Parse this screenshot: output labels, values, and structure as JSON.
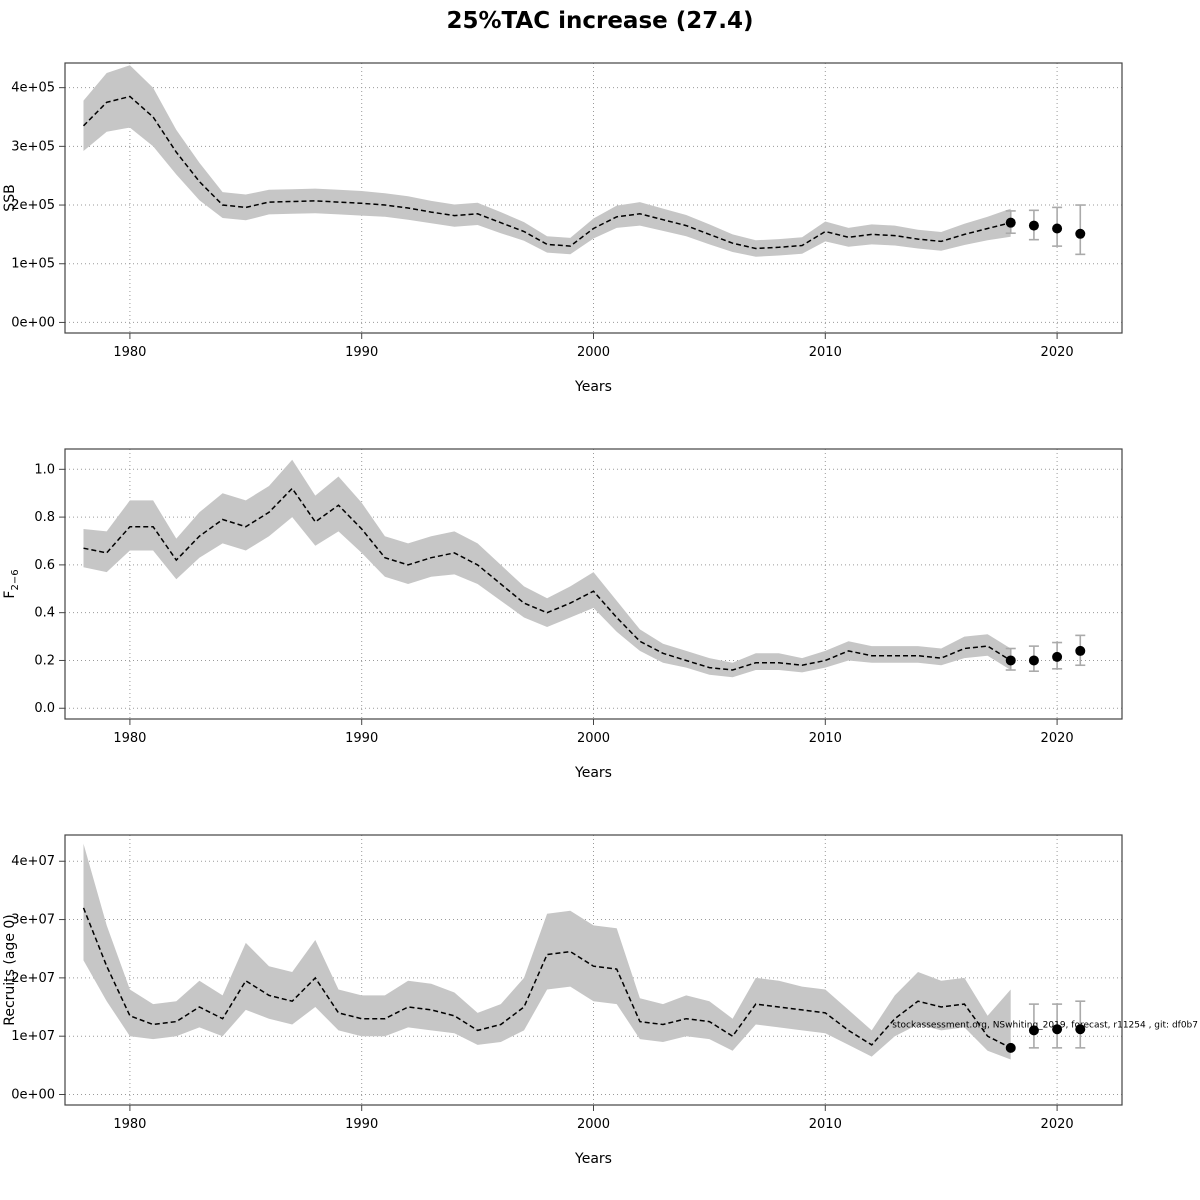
{
  "title": "25%TAC increase (27.4)",
  "chart_data": [
    {
      "type": "line",
      "name": "ssb",
      "ylabel": "SSB",
      "xlabel": "Years",
      "legend": "none",
      "grid": "dotted",
      "xlim": [
        1977.2,
        2022.8
      ],
      "ylim": [
        -18000,
        442000
      ],
      "xticks": [
        1980,
        1990,
        2000,
        2010,
        2020
      ],
      "yticks": [
        {
          "v": 0,
          "label": "0e+00"
        },
        {
          "v": 100000,
          "label": "1e+05"
        },
        {
          "v": 200000,
          "label": "2e+05"
        },
        {
          "v": 300000,
          "label": "3e+05"
        },
        {
          "v": 400000,
          "label": "4e+05"
        }
      ],
      "x": [
        1978,
        1979,
        1980,
        1981,
        1982,
        1983,
        1984,
        1985,
        1986,
        1987,
        1988,
        1989,
        1990,
        1991,
        1992,
        1993,
        1994,
        1995,
        1996,
        1997,
        1998,
        1999,
        2000,
        2001,
        2002,
        2003,
        2004,
        2005,
        2006,
        2007,
        2008,
        2009,
        2010,
        2011,
        2012,
        2013,
        2014,
        2015,
        2016,
        2017,
        2018
      ],
      "mean": [
        335000,
        375000,
        385000,
        350000,
        290000,
        240000,
        200000,
        196000,
        205000,
        206000,
        207000,
        205000,
        203000,
        200000,
        195000,
        188000,
        182000,
        185000,
        170000,
        155000,
        133000,
        130000,
        160000,
        180000,
        185000,
        175000,
        165000,
        150000,
        135000,
        126000,
        128000,
        131000,
        155000,
        145000,
        150000,
        148000,
        142000,
        138000,
        150000,
        160000,
        170000
      ],
      "lo": [
        292000,
        325000,
        332000,
        300000,
        252000,
        208000,
        178000,
        174000,
        184000,
        185000,
        186000,
        184000,
        182000,
        180000,
        175000,
        169000,
        163000,
        166000,
        152000,
        139000,
        119000,
        116000,
        143000,
        161000,
        165000,
        156000,
        147000,
        133000,
        120000,
        112000,
        114000,
        117000,
        138000,
        129000,
        133000,
        131000,
        126000,
        122000,
        132000,
        140000,
        146000
      ],
      "hi": [
        378000,
        425000,
        438000,
        400000,
        328000,
        272000,
        222000,
        218000,
        226000,
        227000,
        228000,
        226000,
        224000,
        220000,
        215000,
        207000,
        201000,
        204000,
        188000,
        171000,
        147000,
        144000,
        177000,
        199000,
        205000,
        194000,
        183000,
        167000,
        150000,
        140000,
        142000,
        145000,
        172000,
        161000,
        167000,
        165000,
        158000,
        154000,
        168000,
        180000,
        194000
      ],
      "forecast": [
        {
          "x": 2018,
          "y": 170000,
          "lo": 152000,
          "hi": 190000
        },
        {
          "x": 2019,
          "y": 165000,
          "lo": 141000,
          "hi": 191000
        },
        {
          "x": 2020,
          "y": 160000,
          "lo": 130000,
          "hi": 196000
        },
        {
          "x": 2021,
          "y": 151000,
          "lo": 116000,
          "hi": 200000
        }
      ]
    },
    {
      "type": "line",
      "name": "fishing-mortality",
      "ylabel": "F",
      "ylabel_sub": "2−6",
      "xlabel": "Years",
      "legend": "none",
      "grid": "dotted",
      "xlim": [
        1977.2,
        2022.8
      ],
      "ylim": [
        -0.045,
        1.085
      ],
      "xticks": [
        1980,
        1990,
        2000,
        2010,
        2020
      ],
      "yticks": [
        {
          "v": 0.0,
          "label": "0.0"
        },
        {
          "v": 0.2,
          "label": "0.2"
        },
        {
          "v": 0.4,
          "label": "0.4"
        },
        {
          "v": 0.6,
          "label": "0.6"
        },
        {
          "v": 0.8,
          "label": "0.8"
        },
        {
          "v": 1.0,
          "label": "1.0"
        }
      ],
      "x": [
        1978,
        1979,
        1980,
        1981,
        1982,
        1983,
        1984,
        1985,
        1986,
        1987,
        1988,
        1989,
        1990,
        1991,
        1992,
        1993,
        1994,
        1995,
        1996,
        1997,
        1998,
        1999,
        2000,
        2001,
        2002,
        2003,
        2004,
        2005,
        2006,
        2007,
        2008,
        2009,
        2010,
        2011,
        2012,
        2013,
        2014,
        2015,
        2016,
        2017,
        2018
      ],
      "mean": [
        0.67,
        0.65,
        0.76,
        0.76,
        0.62,
        0.72,
        0.79,
        0.76,
        0.82,
        0.92,
        0.78,
        0.85,
        0.75,
        0.63,
        0.6,
        0.63,
        0.65,
        0.6,
        0.52,
        0.44,
        0.4,
        0.44,
        0.49,
        0.38,
        0.28,
        0.23,
        0.2,
        0.17,
        0.16,
        0.19,
        0.19,
        0.18,
        0.2,
        0.24,
        0.22,
        0.22,
        0.22,
        0.21,
        0.25,
        0.26,
        0.2
      ],
      "lo": [
        0.59,
        0.57,
        0.66,
        0.66,
        0.54,
        0.63,
        0.69,
        0.66,
        0.72,
        0.8,
        0.68,
        0.74,
        0.65,
        0.55,
        0.52,
        0.55,
        0.56,
        0.52,
        0.45,
        0.38,
        0.34,
        0.38,
        0.42,
        0.32,
        0.24,
        0.19,
        0.17,
        0.14,
        0.13,
        0.16,
        0.16,
        0.15,
        0.17,
        0.2,
        0.19,
        0.19,
        0.19,
        0.18,
        0.21,
        0.22,
        0.16
      ],
      "hi": [
        0.75,
        0.74,
        0.87,
        0.87,
        0.71,
        0.82,
        0.9,
        0.87,
        0.93,
        1.04,
        0.89,
        0.97,
        0.86,
        0.72,
        0.69,
        0.72,
        0.74,
        0.69,
        0.6,
        0.51,
        0.46,
        0.51,
        0.57,
        0.45,
        0.33,
        0.27,
        0.24,
        0.21,
        0.19,
        0.23,
        0.23,
        0.21,
        0.24,
        0.28,
        0.26,
        0.26,
        0.26,
        0.25,
        0.3,
        0.31,
        0.25
      ],
      "forecast": [
        {
          "x": 2018,
          "y": 0.2,
          "lo": 0.16,
          "hi": 0.25
        },
        {
          "x": 2019,
          "y": 0.2,
          "lo": 0.155,
          "hi": 0.26
        },
        {
          "x": 2020,
          "y": 0.215,
          "lo": 0.165,
          "hi": 0.275
        },
        {
          "x": 2021,
          "y": 0.24,
          "lo": 0.18,
          "hi": 0.305
        }
      ]
    },
    {
      "type": "line",
      "name": "recruits",
      "ylabel": "Recruits (age 0)",
      "xlabel": "Years",
      "legend": "none",
      "grid": "dotted",
      "xlim": [
        1977.2,
        2022.8
      ],
      "ylim": [
        -1800000,
        44500000
      ],
      "xticks": [
        1980,
        1990,
        2000,
        2010,
        2020
      ],
      "yticks": [
        {
          "v": 0,
          "label": "0e+00"
        },
        {
          "v": 10000000,
          "label": "1e+07"
        },
        {
          "v": 20000000,
          "label": "2e+07"
        },
        {
          "v": 30000000,
          "label": "3e+07"
        },
        {
          "v": 40000000,
          "label": "4e+07"
        }
      ],
      "x": [
        1978,
        1979,
        1980,
        1981,
        1982,
        1983,
        1984,
        1985,
        1986,
        1987,
        1988,
        1989,
        1990,
        1991,
        1992,
        1993,
        1994,
        1995,
        1996,
        1997,
        1998,
        1999,
        2000,
        2001,
        2002,
        2003,
        2004,
        2005,
        2006,
        2007,
        2008,
        2009,
        2010,
        2011,
        2012,
        2013,
        2014,
        2015,
        2016,
        2017,
        2018
      ],
      "mean": [
        32000000,
        22000000,
        13500000,
        12000000,
        12500000,
        15000000,
        13000000,
        19500000,
        17000000,
        16000000,
        20000000,
        14000000,
        13000000,
        13000000,
        15000000,
        14500000,
        13500000,
        11000000,
        12000000,
        15000000,
        24000000,
        24500000,
        22000000,
        21500000,
        12500000,
        12000000,
        13000000,
        12500000,
        10000000,
        15500000,
        15000000,
        14500000,
        14000000,
        11000000,
        8500000,
        13000000,
        16000000,
        15000000,
        15500000,
        10000000,
        8000000
      ],
      "lo": [
        23000000,
        16000000,
        10000000,
        9500000,
        10000000,
        11500000,
        10000000,
        14500000,
        13000000,
        12000000,
        15000000,
        11000000,
        10000000,
        10000000,
        11500000,
        11000000,
        10500000,
        8500000,
        9000000,
        11000000,
        18000000,
        18500000,
        16000000,
        15500000,
        9500000,
        9000000,
        10000000,
        9500000,
        7500000,
        12000000,
        11500000,
        11000000,
        10500000,
        8500000,
        6500000,
        10000000,
        12000000,
        11000000,
        11500000,
        7500000,
        6000000
      ],
      "hi": [
        43000000,
        29000000,
        18000000,
        15500000,
        16000000,
        19500000,
        17000000,
        26000000,
        22000000,
        21000000,
        26500000,
        18000000,
        17000000,
        17000000,
        19500000,
        19000000,
        17500000,
        14000000,
        15500000,
        20000000,
        31000000,
        31500000,
        29000000,
        28500000,
        16500000,
        15500000,
        17000000,
        16000000,
        13000000,
        20000000,
        19500000,
        18500000,
        18000000,
        14500000,
        11000000,
        17000000,
        21000000,
        19500000,
        20000000,
        13500000,
        18000000
      ],
      "forecast": [
        {
          "x": 2018,
          "y": 8000000,
          "lo": null,
          "hi": null
        },
        {
          "x": 2019,
          "y": 11000000,
          "lo": 8000000,
          "hi": 15500000
        },
        {
          "x": 2020,
          "y": 11200000,
          "lo": 8000000,
          "hi": 15500000
        },
        {
          "x": 2021,
          "y": 11200000,
          "lo": 8000000,
          "hi": 16000000
        }
      ],
      "watermark": "stockassessment.org, NSwhiting_2019, forecast, r11254 , git: df0b7",
      "watermark_y": 11500000
    }
  ]
}
